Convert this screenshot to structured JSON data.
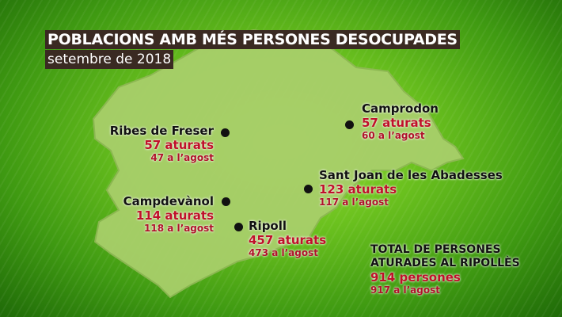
{
  "title": "POBLACIONS AMB MÉS PERSONES DESOCUPADES",
  "subtitle": "setembre de 2018",
  "towns": [
    {
      "name": "Ribes de Freser",
      "current": "57 aturats",
      "previous": "47 a l’agost"
    },
    {
      "name": "Camprodon",
      "current": "57 aturats",
      "previous": "60 a l’agost"
    },
    {
      "name": "Sant Joan de les Abadesses",
      "current": "123 aturats",
      "previous": "117 a l’agost"
    },
    {
      "name": "Campdevànol",
      "current": "114 aturats",
      "previous": "118 a l’agost"
    },
    {
      "name": "Ripoll",
      "current": "457 aturats",
      "previous": "473 a l’agost"
    }
  ],
  "total": {
    "line1": "TOTAL DE PERSONES",
    "line2": "ATURADES AL RIPOLLÈS",
    "current": "914 persones",
    "previous": "917 a l’agost"
  },
  "colors": {
    "highlight": "#c0102a",
    "map": "#a8cf6a",
    "title_bg": "#3a2a22"
  }
}
